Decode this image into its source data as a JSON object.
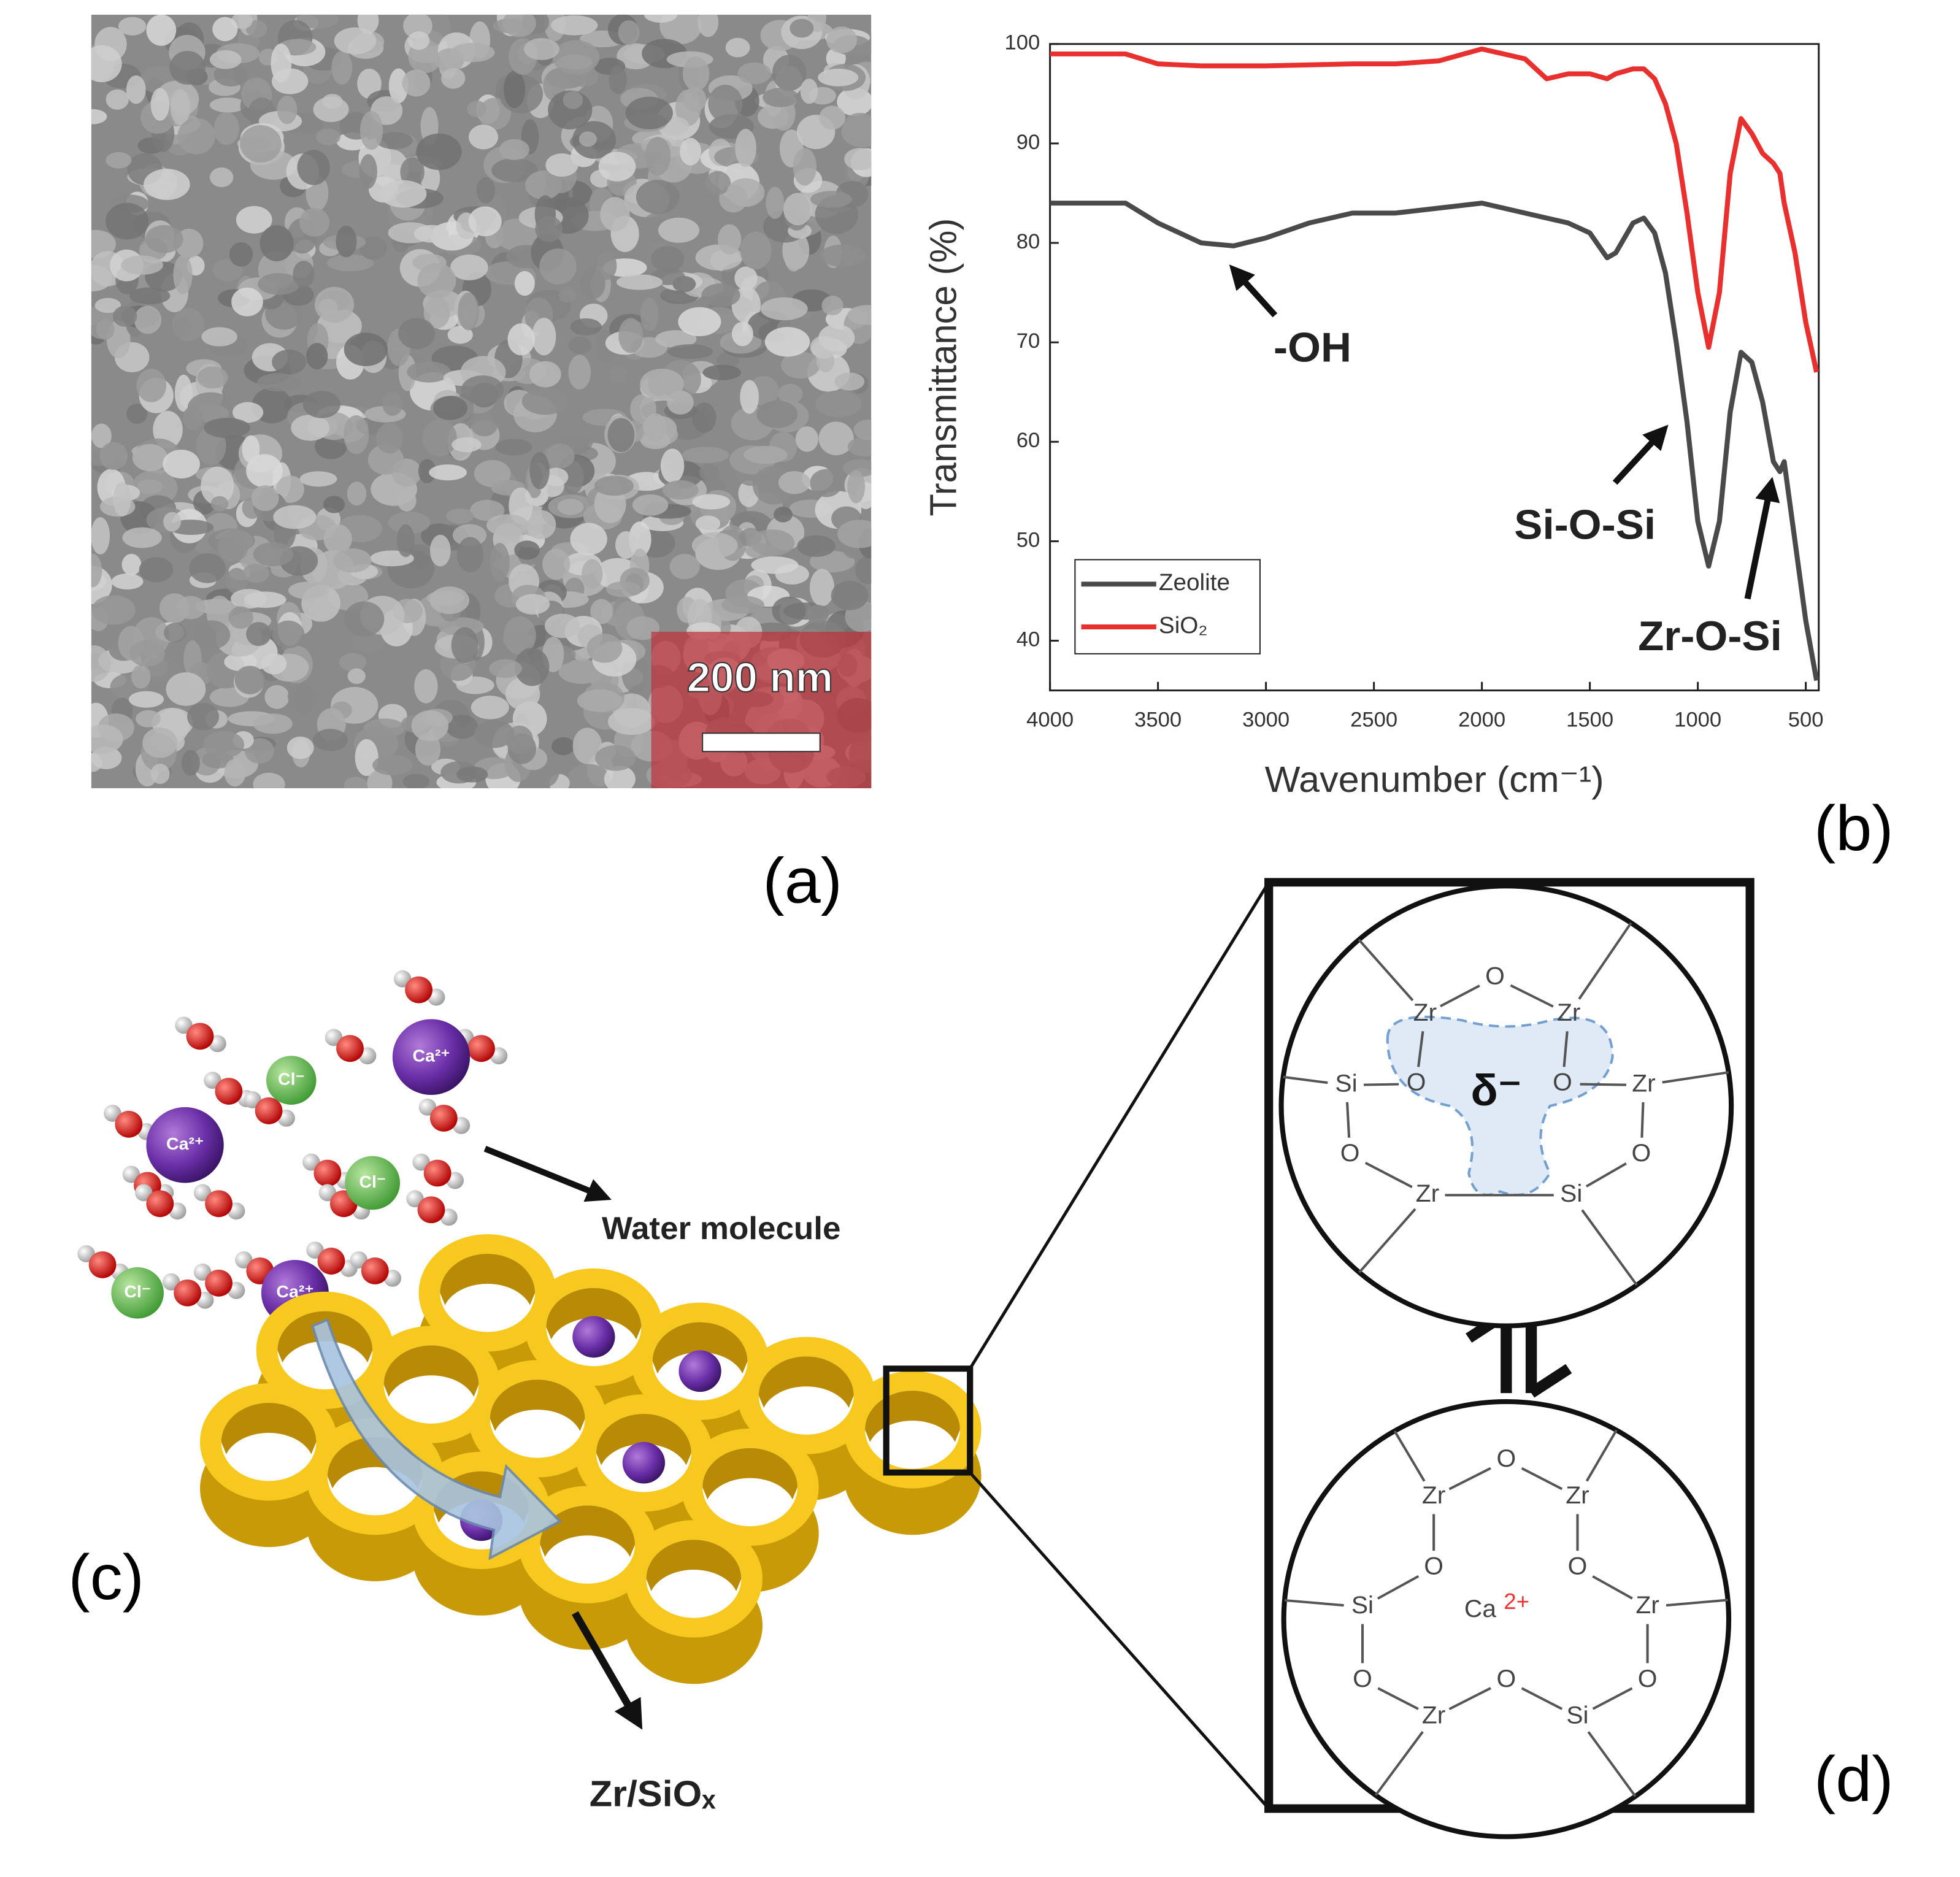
{
  "panel_labels": [
    "(a)",
    "(b)",
    "(c)",
    "(d)"
  ],
  "sem": {
    "scale_bar_label": "200 nm"
  },
  "chart_data": {
    "type": "line",
    "x_label": "Wavenumber (cm⁻¹)",
    "y_label": "Transmittance (%)",
    "x": [
      4000,
      3800,
      3650,
      3500,
      3300,
      3150,
      3000,
      2800,
      2600,
      2400,
      2200,
      2000,
      1900,
      1800,
      1700,
      1600,
      1500,
      1420,
      1380,
      1300,
      1250,
      1200,
      1150,
      1100,
      1050,
      1000,
      950,
      900,
      850,
      800,
      750,
      700,
      650,
      620,
      600,
      550,
      500,
      450
    ],
    "series": [
      {
        "name": "Zeolite",
        "color": "#4a4a4a",
        "values": [
          84,
          84,
          84,
          82,
          80,
          79.7,
          80.5,
          82,
          83,
          83,
          83.5,
          84,
          83.5,
          83,
          82.5,
          82,
          81,
          78.5,
          79,
          82,
          82.5,
          81,
          77,
          70,
          62,
          52,
          47.5,
          52,
          63,
          69,
          68,
          64,
          58,
          57,
          58,
          50,
          42,
          36
        ]
      },
      {
        "name": "SiO₂",
        "color": "#e8312f",
        "values": [
          99,
          99,
          99,
          98,
          97.8,
          97.8,
          97.8,
          97.9,
          98,
          98,
          98.3,
          99.5,
          99,
          98.5,
          96.5,
          97,
          97,
          96.5,
          97,
          97.5,
          97.5,
          96.5,
          94,
          90,
          83,
          75,
          69.5,
          75,
          87,
          92.5,
          91,
          89,
          88,
          87,
          84,
          79,
          72,
          67
        ]
      }
    ],
    "xlim": [
      4000,
      440
    ],
    "ylim": [
      35,
      100
    ],
    "xticks": [
      4000,
      3500,
      3000,
      2500,
      2000,
      1500,
      1000,
      500
    ],
    "yticks": [
      40,
      50,
      60,
      70,
      80,
      90,
      100
    ],
    "legend": "lower left",
    "annotations": [
      "-OH",
      "Si-O-Si",
      "Zr-O-Si"
    ]
  },
  "schematic": {
    "ions": [
      "Ca²⁺",
      "Ca²⁺",
      "Ca²⁺",
      "Cl⁻",
      "Cl⁻",
      "Cl⁻"
    ],
    "water_label": "Water molecule",
    "material_label": "Zr/SiOₓ"
  },
  "structures": [
    {
      "atoms": [
        "O",
        "Zr",
        "Zr",
        "O",
        "O",
        "Si",
        "Zr",
        "O",
        "O",
        "Zr",
        "Si"
      ],
      "center_label": "δ⁻"
    },
    {
      "atoms": [
        "O",
        "Zr",
        "Zr",
        "O",
        "O",
        "Si",
        "Zr",
        "O",
        "O",
        "Zr",
        "O",
        "Si"
      ],
      "center_label": "Ca",
      "center_charge": "2+"
    }
  ]
}
